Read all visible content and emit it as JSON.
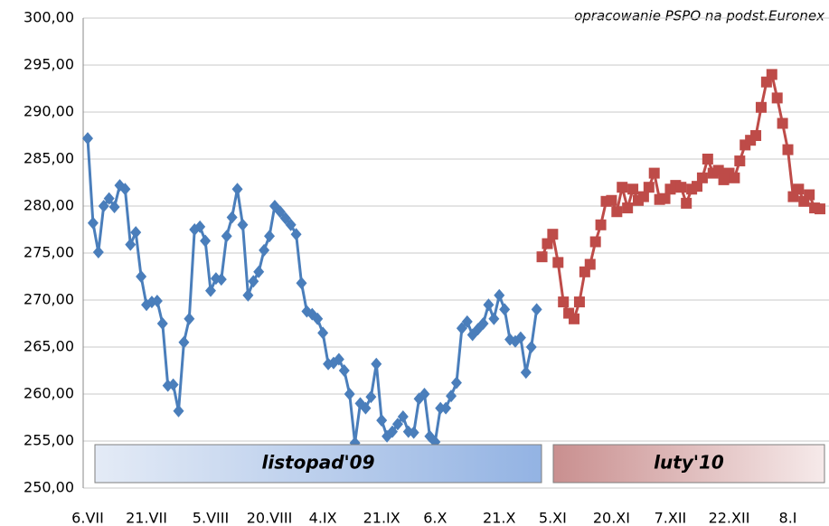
{
  "chart_data": {
    "type": "line",
    "annotations": [
      "opracowanie PSPO na podst.Euronex",
      "listopad'09",
      "luty'10"
    ],
    "categories": [
      "6.VII",
      null,
      null,
      null,
      null,
      null,
      null,
      null,
      null,
      null,
      null,
      "21.VII",
      null,
      null,
      null,
      null,
      null,
      null,
      null,
      null,
      null,
      null,
      null,
      "5.VIII",
      null,
      null,
      null,
      null,
      null,
      null,
      null,
      null,
      null,
      null,
      "20.VIII",
      null,
      null,
      null,
      null,
      null,
      null,
      null,
      null,
      null,
      "4.IX",
      null,
      null,
      null,
      null,
      null,
      null,
      null,
      null,
      null,
      null,
      "21.IX",
      null,
      null,
      null,
      null,
      null,
      null,
      null,
      null,
      null,
      "6.X",
      null,
      null,
      null,
      null,
      null,
      null,
      null,
      null,
      null,
      null,
      null,
      "21.X",
      null,
      null,
      null,
      null,
      null,
      null,
      null,
      null,
      null,
      "5.XI",
      null,
      null,
      null,
      null,
      null,
      null,
      null,
      null,
      null,
      null,
      "20.XI",
      null,
      null,
      null,
      null,
      null,
      null,
      null,
      null,
      null,
      null,
      "7.XII",
      null,
      null,
      null,
      null,
      null,
      null,
      null,
      null,
      null,
      null,
      "22.XII",
      null,
      null,
      null,
      null,
      null,
      null,
      null,
      null,
      null,
      null,
      "8.I",
      null,
      null,
      null,
      null,
      null,
      null
    ],
    "series": [
      {
        "name": "listopad'09",
        "color": "#4a7ebb",
        "marker": "diamond",
        "values": [
          287.2,
          278.2,
          275.1,
          280.0,
          280.8,
          279.9,
          282.2,
          281.8,
          275.9,
          277.2,
          272.5,
          269.5,
          269.8,
          269.9,
          267.5,
          260.9,
          261.0,
          258.2,
          265.5,
          268.0,
          277.5,
          277.8,
          276.3,
          271.0,
          272.3,
          272.2,
          276.8,
          278.8,
          281.8,
          278.0,
          270.5,
          272.0,
          273.0,
          275.3,
          276.8,
          280.0,
          279.4,
          278.7,
          278.0,
          277.0,
          271.8,
          268.8,
          268.5,
          268.0,
          266.5,
          263.2,
          263.3,
          263.7,
          262.5,
          260.0,
          254.8,
          259.0,
          258.5,
          259.7,
          263.2,
          257.2,
          255.5,
          256.0,
          256.8,
          257.6,
          256.0,
          255.9,
          259.5,
          260.0,
          255.5,
          254.9,
          258.5,
          258.5,
          259.8,
          261.2,
          267.0,
          267.7,
          266.3,
          266.9,
          267.5,
          269.5,
          268.0,
          270.5,
          269.0,
          265.8,
          265.6,
          266.0,
          262.3,
          265.0,
          269.0,
          null,
          null,
          null,
          null,
          null,
          null,
          null,
          null,
          null,
          null,
          null,
          null,
          null,
          null,
          null,
          null,
          null,
          null,
          null,
          null,
          null,
          null,
          null,
          null,
          null,
          null,
          null,
          null,
          null,
          null,
          null,
          null,
          null,
          null,
          null,
          null,
          null,
          null,
          null,
          null,
          null,
          null,
          null,
          null,
          null,
          null,
          null,
          null,
          null,
          null,
          null,
          null,
          null
        ]
      },
      {
        "name": "luty'10",
        "color": "#be4b48",
        "marker": "square",
        "values": [
          null,
          null,
          null,
          null,
          null,
          null,
          null,
          null,
          null,
          null,
          null,
          null,
          null,
          null,
          null,
          null,
          null,
          null,
          null,
          null,
          null,
          null,
          null,
          null,
          null,
          null,
          null,
          null,
          null,
          null,
          null,
          null,
          null,
          null,
          null,
          null,
          null,
          null,
          null,
          null,
          null,
          null,
          null,
          null,
          null,
          null,
          null,
          null,
          null,
          null,
          null,
          null,
          null,
          null,
          null,
          null,
          null,
          null,
          null,
          null,
          null,
          null,
          null,
          null,
          null,
          null,
          null,
          null,
          null,
          null,
          null,
          null,
          null,
          null,
          null,
          null,
          null,
          null,
          null,
          null,
          null,
          null,
          null,
          null,
          null,
          274.6,
          276.0,
          277.0,
          274.0,
          269.8,
          268.6,
          268.0,
          269.8,
          273.0,
          273.8,
          276.2,
          278.0,
          280.5,
          280.6,
          279.4,
          282.0,
          279.8,
          281.8,
          280.6,
          281.0,
          282.0,
          283.5,
          280.7,
          280.8,
          281.8,
          282.2,
          282.0,
          280.3,
          281.8,
          282.1,
          283.0,
          285.0,
          283.5,
          283.8,
          282.8,
          283.5,
          283.0,
          284.8,
          286.5,
          287.0,
          287.5,
          290.5,
          293.2,
          294.0,
          291.5,
          288.8,
          286.0,
          281.0,
          281.8,
          280.5,
          281.2,
          279.8,
          279.7
        ]
      }
    ],
    "ylim": [
      250,
      300
    ],
    "yticks": [
      {
        "value": 250,
        "label": "250,00"
      },
      {
        "value": 255,
        "label": "255,00"
      },
      {
        "value": 260,
        "label": "260,00"
      },
      {
        "value": 265,
        "label": "265,00"
      },
      {
        "value": 270,
        "label": "270,00"
      },
      {
        "value": 275,
        "label": "275,00"
      },
      {
        "value": 280,
        "label": "280,00"
      },
      {
        "value": 285,
        "label": "285,00"
      },
      {
        "value": 290,
        "label": "290,00"
      },
      {
        "value": 295,
        "label": "295,00"
      },
      {
        "value": 300,
        "label": "300,00"
      }
    ],
    "grid": true
  }
}
